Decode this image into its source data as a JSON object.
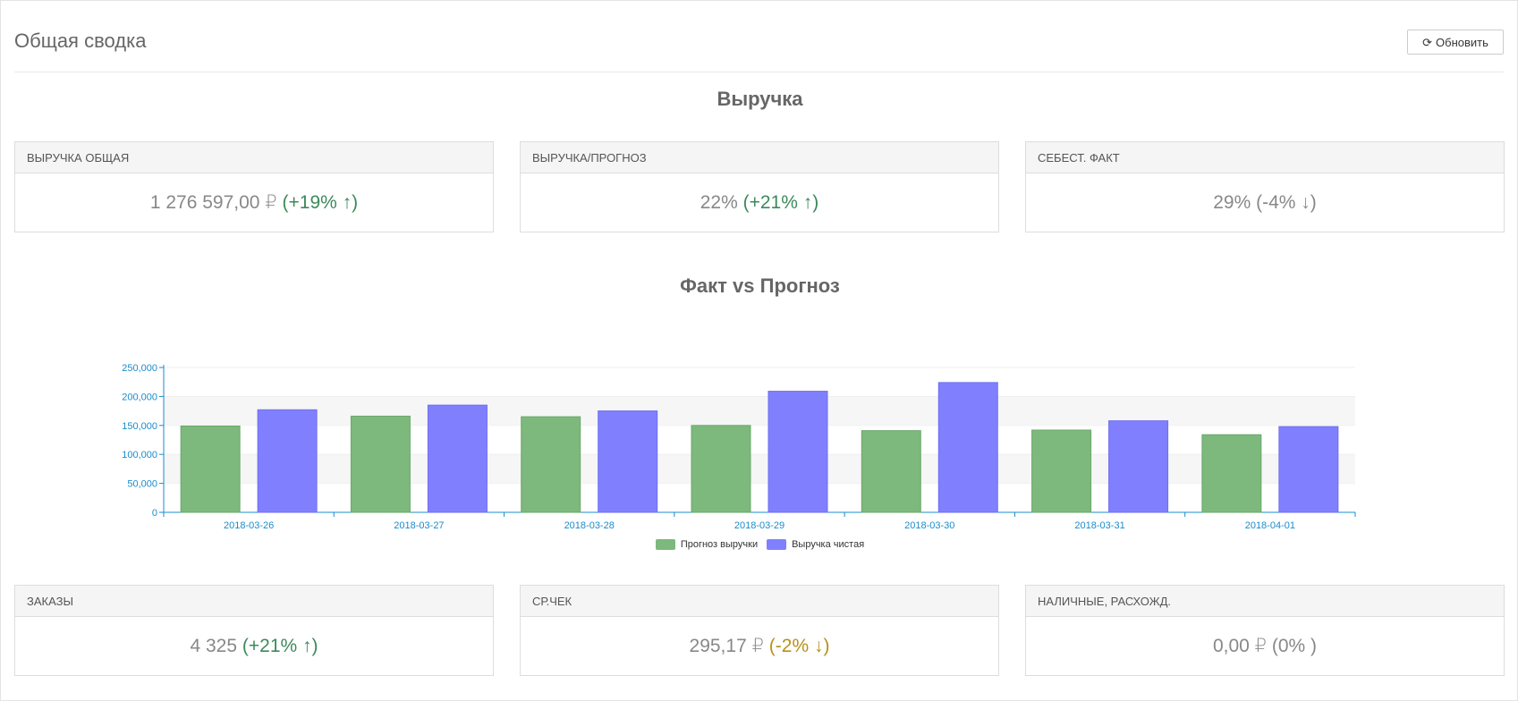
{
  "header": {
    "title": "Общая сводка",
    "refresh_label": "Обновить"
  },
  "sections": {
    "revenue_title": "Выручка",
    "chart_title": "Факт vs Прогноз"
  },
  "cards_top": [
    {
      "label": "ВЫРУЧКА ОБЩАЯ",
      "value": "1 276 597,00 ₽",
      "delta": "(+19% ↑)"
    },
    {
      "label": "ВЫРУЧКА/ПРОГНОЗ",
      "value": "22%",
      "delta": "(+21% ↑)"
    },
    {
      "label": "СЕБЕСТ. ФАКТ",
      "value": "29%",
      "delta": "(-4% ↓)"
    }
  ],
  "cards_bottom": [
    {
      "label": "ЗАКАЗЫ",
      "value": "4 325",
      "delta": "(+21% ↑)"
    },
    {
      "label": "СР.ЧЕК",
      "value": "295,17 ₽",
      "delta": "(-2% ↓)"
    },
    {
      "label": "НАЛИЧНЫЕ, РАСХОЖД.",
      "value": "0,00 ₽",
      "delta": "(0% )"
    }
  ],
  "colors": {
    "forecast": "#7db87d",
    "actual": "#8080ff",
    "axis": "#1a8ccc",
    "up": "#3c8a5a",
    "down_gold": "#b8901a"
  },
  "chart_data": {
    "type": "bar",
    "categories": [
      "2018-03-26",
      "2018-03-27",
      "2018-03-28",
      "2018-03-29",
      "2018-03-30",
      "2018-03-31",
      "2018-04-01"
    ],
    "series": [
      {
        "name": "Прогноз выручки",
        "values": [
          149000,
          166000,
          165000,
          150000,
          141000,
          142000,
          134000
        ]
      },
      {
        "name": "Выручка чистая",
        "values": [
          177000,
          185000,
          175000,
          209000,
          224000,
          158000,
          148000
        ]
      }
    ],
    "yticks": [
      "0",
      "50,000",
      "100,000",
      "150,000",
      "200,000",
      "250,000"
    ],
    "ylim": [
      0,
      250000
    ],
    "grid": "alternating-bands",
    "legend_position": "bottom-center"
  }
}
